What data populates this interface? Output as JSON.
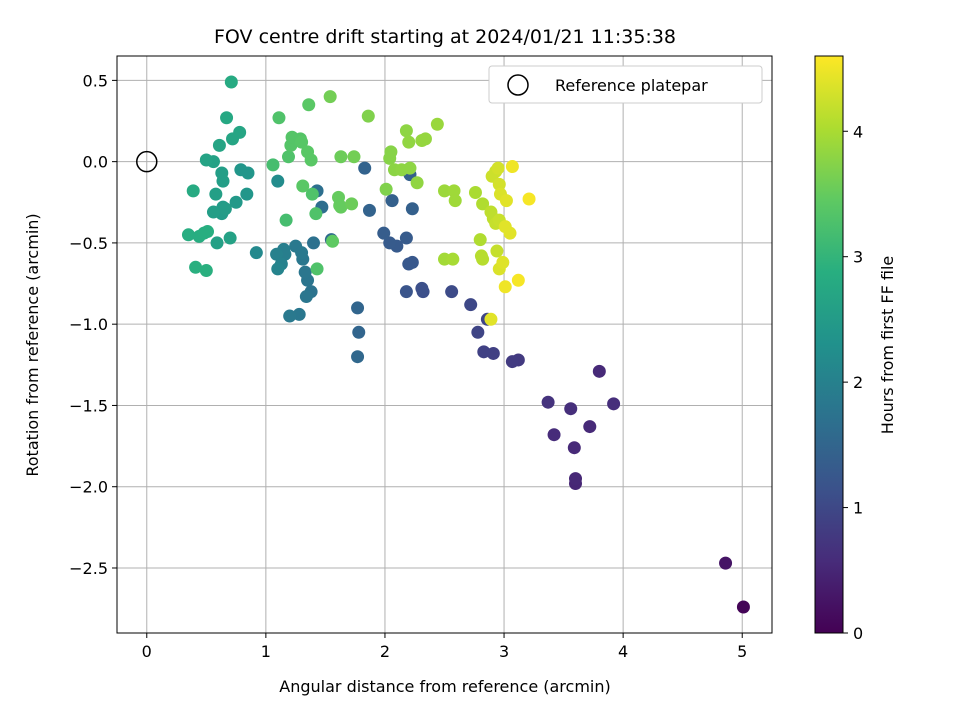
{
  "chart_data": {
    "type": "scatter",
    "title": "FOV centre drift starting at 2024/01/21 11:35:38",
    "xlabel": "Angular distance from reference (arcmin)",
    "ylabel": "Rotation from reference (arcmin)",
    "xlim": [
      -0.25,
      5.25
    ],
    "ylim": [
      -2.9,
      0.65
    ],
    "xticks": [
      0,
      1,
      2,
      3,
      4,
      5
    ],
    "yticks": [
      0.5,
      0.0,
      -0.5,
      -1.0,
      -1.5,
      -2.0,
      -2.5
    ],
    "xtick_labels": [
      "0",
      "1",
      "2",
      "3",
      "4",
      "5"
    ],
    "ytick_labels": [
      "0.5",
      "0.0",
      "−0.5",
      "−1.0",
      "−1.5",
      "−2.0",
      "−2.5"
    ],
    "grid": true,
    "legend": {
      "placement": "top-right",
      "entries": [
        "Reference platepar"
      ]
    },
    "reference_point": {
      "x": 0,
      "y": 0
    },
    "colorbar": {
      "label": "Hours from first FF file",
      "colormap": "viridis",
      "range": [
        0,
        4.6
      ],
      "ticks": [
        0,
        1,
        2,
        3,
        4
      ],
      "tick_labels": [
        "0",
        "1",
        "2",
        "3",
        "4"
      ]
    },
    "points": [
      {
        "x": 5.01,
        "y": -2.74,
        "c": 0.05
      },
      {
        "x": 4.86,
        "y": -2.47,
        "c": 0.25
      },
      {
        "x": 3.6,
        "y": -1.98,
        "c": 0.5
      },
      {
        "x": 3.6,
        "y": -1.95,
        "c": 0.52
      },
      {
        "x": 3.59,
        "y": -1.76,
        "c": 0.55
      },
      {
        "x": 3.42,
        "y": -1.68,
        "c": 0.58
      },
      {
        "x": 3.72,
        "y": -1.63,
        "c": 0.55
      },
      {
        "x": 3.56,
        "y": -1.52,
        "c": 0.62
      },
      {
        "x": 3.92,
        "y": -1.49,
        "c": 0.6
      },
      {
        "x": 3.37,
        "y": -1.48,
        "c": 0.68
      },
      {
        "x": 3.8,
        "y": -1.29,
        "c": 0.55
      },
      {
        "x": 3.12,
        "y": -1.22,
        "c": 0.78
      },
      {
        "x": 3.07,
        "y": -1.23,
        "c": 0.8
      },
      {
        "x": 2.91,
        "y": -1.18,
        "c": 0.88
      },
      {
        "x": 2.83,
        "y": -1.17,
        "c": 0.9
      },
      {
        "x": 2.78,
        "y": -1.05,
        "c": 0.95
      },
      {
        "x": 2.86,
        "y": -0.97,
        "c": 0.95
      },
      {
        "x": 2.72,
        "y": -0.88,
        "c": 1.0
      },
      {
        "x": 2.56,
        "y": -0.8,
        "c": 1.05
      },
      {
        "x": 2.32,
        "y": -0.8,
        "c": 1.1
      },
      {
        "x": 2.31,
        "y": -0.78,
        "c": 1.12
      },
      {
        "x": 2.18,
        "y": -0.8,
        "c": 1.2
      },
      {
        "x": 2.23,
        "y": -0.62,
        "c": 1.25
      },
      {
        "x": 2.2,
        "y": -0.63,
        "c": 1.25
      },
      {
        "x": 2.1,
        "y": -0.52,
        "c": 1.3
      },
      {
        "x": 2.04,
        "y": -0.5,
        "c": 1.32
      },
      {
        "x": 2.18,
        "y": -0.47,
        "c": 1.32
      },
      {
        "x": 1.99,
        "y": -0.44,
        "c": 1.35
      },
      {
        "x": 2.06,
        "y": -0.24,
        "c": 1.4
      },
      {
        "x": 2.23,
        "y": -0.29,
        "c": 1.4
      },
      {
        "x": 1.87,
        "y": -0.3,
        "c": 1.45
      },
      {
        "x": 2.21,
        "y": -0.08,
        "c": 1.4
      },
      {
        "x": 1.83,
        "y": -0.04,
        "c": 1.45
      },
      {
        "x": 1.77,
        "y": -0.9,
        "c": 1.5
      },
      {
        "x": 1.78,
        "y": -1.05,
        "c": 1.5
      },
      {
        "x": 1.77,
        "y": -1.2,
        "c": 1.55
      },
      {
        "x": 1.55,
        "y": -0.48,
        "c": 1.6
      },
      {
        "x": 1.47,
        "y": -0.28,
        "c": 1.65
      },
      {
        "x": 1.43,
        "y": -0.18,
        "c": 1.68
      },
      {
        "x": 1.4,
        "y": -0.5,
        "c": 1.7
      },
      {
        "x": 1.38,
        "y": -0.8,
        "c": 1.75
      },
      {
        "x": 1.35,
        "y": -0.73,
        "c": 1.78
      },
      {
        "x": 1.33,
        "y": -0.68,
        "c": 1.8
      },
      {
        "x": 1.31,
        "y": -0.6,
        "c": 1.82
      },
      {
        "x": 1.34,
        "y": -0.83,
        "c": 1.8
      },
      {
        "x": 1.28,
        "y": -0.94,
        "c": 1.82
      },
      {
        "x": 1.2,
        "y": -0.95,
        "c": 1.85
      },
      {
        "x": 1.25,
        "y": -0.52,
        "c": 1.85
      },
      {
        "x": 1.3,
        "y": -0.56,
        "c": 1.85
      },
      {
        "x": 1.15,
        "y": -0.54,
        "c": 1.95
      },
      {
        "x": 1.16,
        "y": -0.57,
        "c": 1.95
      },
      {
        "x": 1.09,
        "y": -0.57,
        "c": 2.0
      },
      {
        "x": 1.13,
        "y": -0.63,
        "c": 2.0
      },
      {
        "x": 1.1,
        "y": -0.66,
        "c": 2.05
      },
      {
        "x": 0.92,
        "y": -0.56,
        "c": 2.15
      },
      {
        "x": 1.1,
        "y": -0.12,
        "c": 2.2
      },
      {
        "x": 0.79,
        "y": -0.05,
        "c": 2.4
      },
      {
        "x": 0.85,
        "y": -0.07,
        "c": 2.4
      },
      {
        "x": 0.84,
        "y": -0.2,
        "c": 2.4
      },
      {
        "x": 0.75,
        "y": -0.25,
        "c": 2.45
      },
      {
        "x": 0.64,
        "y": -0.28,
        "c": 2.5
      },
      {
        "x": 0.63,
        "y": -0.32,
        "c": 2.5
      },
      {
        "x": 0.66,
        "y": -0.29,
        "c": 2.52
      },
      {
        "x": 0.56,
        "y": -0.31,
        "c": 2.55
      },
      {
        "x": 0.64,
        "y": -0.12,
        "c": 2.55
      },
      {
        "x": 0.63,
        "y": -0.07,
        "c": 2.55
      },
      {
        "x": 0.58,
        "y": -0.2,
        "c": 2.58
      },
      {
        "x": 0.59,
        "y": -0.5,
        "c": 2.6
      },
      {
        "x": 0.7,
        "y": -0.47,
        "c": 2.62
      },
      {
        "x": 0.56,
        "y": 0.0,
        "c": 2.62
      },
      {
        "x": 0.5,
        "y": 0.01,
        "c": 2.65
      },
      {
        "x": 0.61,
        "y": 0.1,
        "c": 2.68
      },
      {
        "x": 0.72,
        "y": 0.14,
        "c": 2.7
      },
      {
        "x": 0.78,
        "y": 0.18,
        "c": 2.7
      },
      {
        "x": 0.67,
        "y": 0.27,
        "c": 2.75
      },
      {
        "x": 0.71,
        "y": 0.49,
        "c": 2.8
      },
      {
        "x": 0.39,
        "y": -0.18,
        "c": 2.8
      },
      {
        "x": 0.35,
        "y": -0.45,
        "c": 2.85
      },
      {
        "x": 0.44,
        "y": -0.46,
        "c": 2.85
      },
      {
        "x": 0.48,
        "y": -0.44,
        "c": 2.88
      },
      {
        "x": 0.51,
        "y": -0.43,
        "c": 2.88
      },
      {
        "x": 0.41,
        "y": -0.65,
        "c": 2.9
      },
      {
        "x": 0.5,
        "y": -0.67,
        "c": 2.9
      },
      {
        "x": 1.43,
        "y": -0.66,
        "c": 3.3
      },
      {
        "x": 1.17,
        "y": -0.36,
        "c": 3.2
      },
      {
        "x": 1.42,
        "y": -0.32,
        "c": 3.3
      },
      {
        "x": 1.39,
        "y": -0.2,
        "c": 3.3
      },
      {
        "x": 1.06,
        "y": -0.02,
        "c": 3.2
      },
      {
        "x": 1.11,
        "y": 0.27,
        "c": 3.3
      },
      {
        "x": 1.19,
        "y": 0.03,
        "c": 3.3
      },
      {
        "x": 1.21,
        "y": 0.1,
        "c": 3.35
      },
      {
        "x": 1.23,
        "y": 0.13,
        "c": 3.35
      },
      {
        "x": 1.22,
        "y": 0.15,
        "c": 3.35
      },
      {
        "x": 1.29,
        "y": 0.14,
        "c": 3.35
      },
      {
        "x": 1.3,
        "y": 0.12,
        "c": 3.38
      },
      {
        "x": 1.35,
        "y": 0.06,
        "c": 3.4
      },
      {
        "x": 1.38,
        "y": 0.01,
        "c": 3.4
      },
      {
        "x": 1.31,
        "y": -0.15,
        "c": 3.4
      },
      {
        "x": 1.36,
        "y": 0.35,
        "c": 3.4
      },
      {
        "x": 1.56,
        "y": -0.49,
        "c": 3.45
      },
      {
        "x": 1.61,
        "y": -0.22,
        "c": 3.5
      },
      {
        "x": 1.62,
        "y": -0.27,
        "c": 3.5
      },
      {
        "x": 1.63,
        "y": -0.28,
        "c": 3.5
      },
      {
        "x": 1.72,
        "y": -0.26,
        "c": 3.55
      },
      {
        "x": 1.63,
        "y": 0.03,
        "c": 3.55
      },
      {
        "x": 1.74,
        "y": 0.03,
        "c": 3.6
      },
      {
        "x": 1.54,
        "y": 0.4,
        "c": 3.6
      },
      {
        "x": 1.86,
        "y": 0.28,
        "c": 3.7
      },
      {
        "x": 2.01,
        "y": -0.17,
        "c": 3.7
      },
      {
        "x": 2.04,
        "y": 0.02,
        "c": 3.75
      },
      {
        "x": 2.05,
        "y": 0.06,
        "c": 3.75
      },
      {
        "x": 2.08,
        "y": -0.05,
        "c": 3.78
      },
      {
        "x": 2.14,
        "y": -0.05,
        "c": 3.8
      },
      {
        "x": 2.21,
        "y": -0.04,
        "c": 3.8
      },
      {
        "x": 2.27,
        "y": -0.13,
        "c": 3.82
      },
      {
        "x": 2.18,
        "y": 0.19,
        "c": 3.8
      },
      {
        "x": 2.2,
        "y": 0.12,
        "c": 3.82
      },
      {
        "x": 2.31,
        "y": 0.13,
        "c": 3.85
      },
      {
        "x": 2.34,
        "y": 0.14,
        "c": 3.85
      },
      {
        "x": 2.44,
        "y": 0.23,
        "c": 3.88
      },
      {
        "x": 2.5,
        "y": -0.18,
        "c": 3.9
      },
      {
        "x": 2.58,
        "y": -0.18,
        "c": 3.92
      },
      {
        "x": 2.59,
        "y": -0.24,
        "c": 3.92
      },
      {
        "x": 2.5,
        "y": -0.6,
        "c": 3.95
      },
      {
        "x": 2.57,
        "y": -0.6,
        "c": 3.98
      },
      {
        "x": 2.76,
        "y": -0.19,
        "c": 4.0
      },
      {
        "x": 2.82,
        "y": -0.26,
        "c": 4.05
      },
      {
        "x": 2.8,
        "y": -0.48,
        "c": 4.05
      },
      {
        "x": 2.81,
        "y": -0.58,
        "c": 4.1
      },
      {
        "x": 2.82,
        "y": -0.6,
        "c": 4.1
      },
      {
        "x": 2.89,
        "y": -0.31,
        "c": 4.15
      },
      {
        "x": 2.91,
        "y": -0.35,
        "c": 4.15
      },
      {
        "x": 2.93,
        "y": -0.38,
        "c": 4.2
      },
      {
        "x": 2.94,
        "y": -0.55,
        "c": 4.2
      },
      {
        "x": 2.96,
        "y": -0.36,
        "c": 4.22
      },
      {
        "x": 2.9,
        "y": -0.09,
        "c": 4.25
      },
      {
        "x": 2.93,
        "y": -0.06,
        "c": 4.25
      },
      {
        "x": 2.95,
        "y": -0.04,
        "c": 4.3
      },
      {
        "x": 2.96,
        "y": -0.14,
        "c": 4.3
      },
      {
        "x": 2.96,
        "y": -0.66,
        "c": 4.35
      },
      {
        "x": 2.97,
        "y": -0.2,
        "c": 4.35
      },
      {
        "x": 2.99,
        "y": -0.62,
        "c": 4.38
      },
      {
        "x": 3.01,
        "y": -0.4,
        "c": 4.4
      },
      {
        "x": 3.02,
        "y": -0.24,
        "c": 4.4
      },
      {
        "x": 3.05,
        "y": -0.44,
        "c": 4.4
      },
      {
        "x": 2.89,
        "y": -0.97,
        "c": 4.4
      },
      {
        "x": 3.07,
        "y": -0.03,
        "c": 4.5
      },
      {
        "x": 3.01,
        "y": -0.77,
        "c": 4.5
      },
      {
        "x": 3.12,
        "y": -0.73,
        "c": 4.55
      },
      {
        "x": 3.21,
        "y": -0.23,
        "c": 4.55
      }
    ]
  }
}
